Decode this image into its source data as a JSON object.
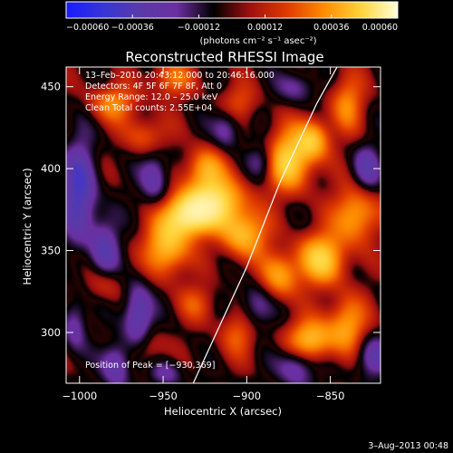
{
  "chart_data": {
    "type": "heatmap",
    "title": "Reconstructed RHESSI Image",
    "xlabel": "Heliocentric X (arcsec)",
    "ylabel": "Heliocentric Y (arcsec)",
    "xlim": [
      -1008,
      -820
    ],
    "ylim": [
      269,
      462
    ],
    "x_ticks": [
      -1000,
      -950,
      -900,
      -850
    ],
    "x_tick_labels": [
      "−1000",
      "−950",
      "−900",
      "−850"
    ],
    "y_ticks": [
      300,
      350,
      400,
      450
    ],
    "y_tick_labels": [
      "300",
      "350",
      "400",
      "450"
    ],
    "colorbar": {
      "min": -0.0006,
      "max": 0.0006,
      "tick_values": [
        -0.0006,
        -0.00036,
        -0.00012,
        0.00012,
        0.00036,
        0.0006
      ],
      "tick_labels": [
        "−0.00060",
        "−0.00036",
        "−0.00012",
        "0.00012",
        "0.00036",
        "0.00060"
      ],
      "units_label": "(photons cm⁻² s⁻¹ asec⁻²)",
      "colors": [
        "#1a1aff",
        "#3535d8",
        "#5a3aa8",
        "#6c2fa0",
        "#000000",
        "#a01010",
        "#e03a00",
        "#ff8c00",
        "#ffd43a",
        "#ffffd8"
      ]
    },
    "annotations": [
      "13–Feb–2010 20:43:12.000 to 20:46:16.000",
      "Detectors: 4F 5F 6F 7F 8F, Att 0",
      "Energy Range: 12.0 – 25.0 keV",
      "Clean      Total counts: 2.55E+04"
    ],
    "peak_label": "Position of Peak = [−930,369]",
    "peak": [
      -930,
      369
    ],
    "limb_line": [
      [
        -932,
        269
      ],
      [
        -900,
        340
      ],
      [
        -880,
        392
      ],
      [
        -858,
        440
      ],
      [
        -846,
        462
      ]
    ],
    "sources": [
      {
        "x": -935,
        "y": 372,
        "amp": 1.0,
        "sx": 10,
        "sy": 9
      },
      {
        "x": -918,
        "y": 380,
        "amp": 0.82,
        "sx": 12,
        "sy": 10
      },
      {
        "x": -948,
        "y": 352,
        "amp": 0.7,
        "sx": 9,
        "sy": 12
      },
      {
        "x": -902,
        "y": 360,
        "amp": 0.65,
        "sx": 10,
        "sy": 10
      },
      {
        "x": -925,
        "y": 400,
        "amp": 0.55,
        "sx": 8,
        "sy": 9
      },
      {
        "x": -875,
        "y": 405,
        "amp": 0.78,
        "sx": 10,
        "sy": 13
      },
      {
        "x": -860,
        "y": 418,
        "amp": 0.6,
        "sx": 7,
        "sy": 9
      },
      {
        "x": -840,
        "y": 440,
        "amp": 0.45,
        "sx": 7,
        "sy": 12
      },
      {
        "x": -880,
        "y": 335,
        "amp": 0.55,
        "sx": 8,
        "sy": 10
      },
      {
        "x": -855,
        "y": 345,
        "amp": 0.75,
        "sx": 10,
        "sy": 11
      },
      {
        "x": -835,
        "y": 372,
        "amp": 0.6,
        "sx": 9,
        "sy": 12
      },
      {
        "x": -862,
        "y": 295,
        "amp": 0.7,
        "sx": 10,
        "sy": 9
      },
      {
        "x": -840,
        "y": 305,
        "amp": 0.55,
        "sx": 8,
        "sy": 12
      },
      {
        "x": -980,
        "y": 440,
        "amp": 0.45,
        "sx": 10,
        "sy": 8
      },
      {
        "x": -960,
        "y": 420,
        "amp": 0.35,
        "sx": 9,
        "sy": 8
      },
      {
        "x": -945,
        "y": 455,
        "amp": 0.4,
        "sx": 9,
        "sy": 8
      },
      {
        "x": -905,
        "y": 440,
        "amp": 0.3,
        "sx": 8,
        "sy": 8
      },
      {
        "x": -905,
        "y": 300,
        "amp": 0.35,
        "sx": 8,
        "sy": 10
      },
      {
        "x": -930,
        "y": 318,
        "amp": 0.28,
        "sx": 8,
        "sy": 8
      },
      {
        "x": -985,
        "y": 330,
        "amp": 0.3,
        "sx": 7,
        "sy": 8
      },
      {
        "x": -960,
        "y": 290,
        "amp": 0.28,
        "sx": 7,
        "sy": 8
      },
      {
        "x": -1000,
        "y": 385,
        "amp": -0.6,
        "sx": 7,
        "sy": 22
      },
      {
        "x": -985,
        "y": 350,
        "amp": -0.45,
        "sx": 6,
        "sy": 14
      },
      {
        "x": -965,
        "y": 310,
        "amp": -0.55,
        "sx": 6,
        "sy": 14
      },
      {
        "x": -978,
        "y": 280,
        "amp": -0.45,
        "sx": 6,
        "sy": 10
      },
      {
        "x": -1003,
        "y": 305,
        "amp": -0.35,
        "sx": 5,
        "sy": 12
      },
      {
        "x": -955,
        "y": 395,
        "amp": -0.4,
        "sx": 6,
        "sy": 12
      },
      {
        "x": -912,
        "y": 425,
        "amp": -0.35,
        "sx": 6,
        "sy": 9
      },
      {
        "x": -890,
        "y": 405,
        "amp": -0.35,
        "sx": 6,
        "sy": 8
      },
      {
        "x": -895,
        "y": 315,
        "amp": -0.35,
        "sx": 7,
        "sy": 10
      },
      {
        "x": -870,
        "y": 280,
        "amp": -0.45,
        "sx": 8,
        "sy": 9
      },
      {
        "x": -828,
        "y": 400,
        "amp": -0.4,
        "sx": 6,
        "sy": 10
      },
      {
        "x": -825,
        "y": 285,
        "amp": -0.4,
        "sx": 7,
        "sy": 9
      },
      {
        "x": -948,
        "y": 275,
        "amp": -0.3,
        "sx": 7,
        "sy": 6
      },
      {
        "x": -870,
        "y": 450,
        "amp": -0.3,
        "sx": 8,
        "sy": 7
      }
    ]
  },
  "footer": {
    "date": "3–Aug–2013 00:48"
  }
}
